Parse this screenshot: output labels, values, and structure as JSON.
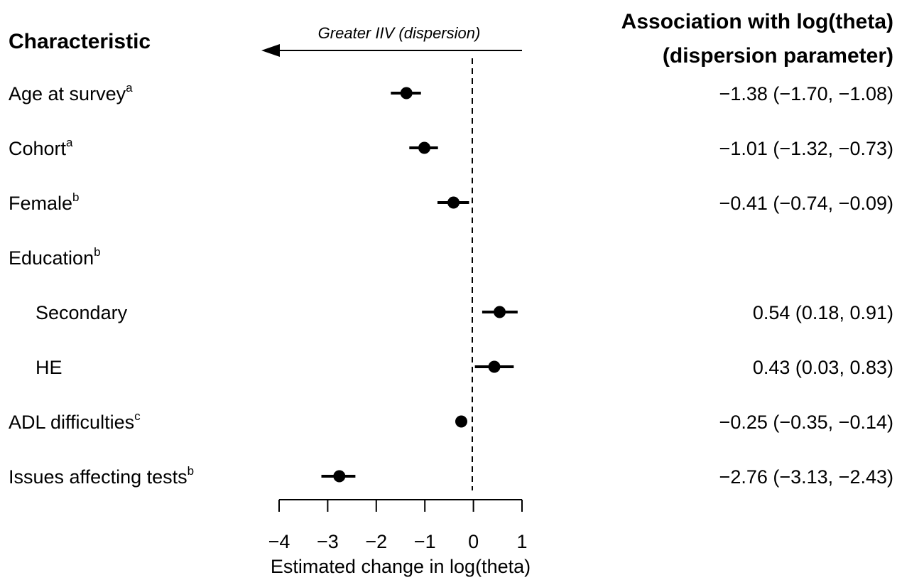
{
  "chart_data": {
    "type": "forest",
    "headers": {
      "characteristic": "Characteristic",
      "estimate_line1": "Association with log(theta)",
      "estimate_line2": "(dispersion parameter)"
    },
    "arrow_label": "Greater IIV (dispersion)",
    "xlabel": "Estimated change in log(theta)",
    "xlim": [
      -4,
      1
    ],
    "xticks": [
      -4,
      -3,
      -2,
      -1,
      0,
      1
    ],
    "xtick_labels": [
      "−4",
      "−3",
      "−2",
      "−1",
      "0",
      "1"
    ],
    "reference_line": 0,
    "rows": [
      {
        "label": "Age at survey",
        "sup": "a",
        "indent": false,
        "estimate": -1.38,
        "lower": -1.7,
        "upper": -1.08,
        "text": "−1.38 (−1.70, −1.08)"
      },
      {
        "label": "Cohort",
        "sup": "a",
        "indent": false,
        "estimate": -1.01,
        "lower": -1.32,
        "upper": -0.73,
        "text": "−1.01 (−1.32, −0.73)"
      },
      {
        "label": "Female",
        "sup": "b",
        "indent": false,
        "estimate": -0.41,
        "lower": -0.74,
        "upper": -0.09,
        "text": "−0.41 (−0.74, −0.09)"
      },
      {
        "label": "Education",
        "sup": "b",
        "indent": false,
        "estimate": null,
        "lower": null,
        "upper": null,
        "text": ""
      },
      {
        "label": "Secondary",
        "sup": "",
        "indent": true,
        "estimate": 0.54,
        "lower": 0.18,
        "upper": 0.91,
        "text": "0.54 (0.18, 0.91)"
      },
      {
        "label": "HE",
        "sup": "",
        "indent": true,
        "estimate": 0.43,
        "lower": 0.03,
        "upper": 0.83,
        "text": "0.43 (0.03, 0.83)"
      },
      {
        "label": "ADL difficulties",
        "sup": "c",
        "indent": false,
        "estimate": -0.25,
        "lower": -0.35,
        "upper": -0.14,
        "text": "−0.25 (−0.35, −0.14)"
      },
      {
        "label": "Issues affecting tests",
        "sup": "b",
        "indent": false,
        "estimate": -2.76,
        "lower": -3.13,
        "upper": -2.43,
        "text": "−2.76 (−3.13, −2.43)"
      }
    ]
  }
}
